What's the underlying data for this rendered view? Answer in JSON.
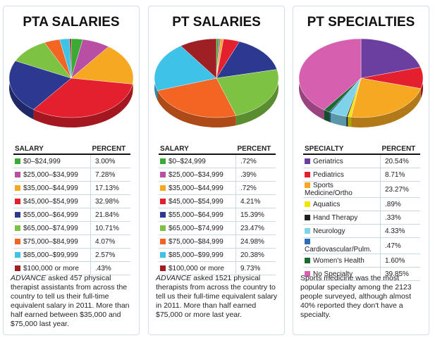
{
  "chart_data": [
    {
      "type": "pie",
      "title": "PTA SALARIES",
      "column_headers": [
        "SALARY",
        "PERCENT"
      ],
      "categories": [
        "$0–$24,999",
        "$25,000–$34,999",
        "$35,000–$44,999",
        "$45,000–$54,999",
        "$55,000–$64,999",
        "$65,000–$74,999",
        "$75,000–$84,999",
        "$85,000–$99,999",
        "$100,000 or more"
      ],
      "values": [
        3.0,
        7.28,
        17.13,
        32.98,
        21.84,
        10.71,
        4.07,
        2.57,
        0.43
      ],
      "value_labels": [
        "3.00%",
        "7.28%",
        "17.13%",
        "32.98%",
        "21.84%",
        "10.71%",
        "4.07%",
        "2.57%",
        ".43%"
      ],
      "colors": [
        "#3aaa35",
        "#b84fa5",
        "#f7a823",
        "#e4202e",
        "#2b3990",
        "#7dc242",
        "#f26522",
        "#3fc2e8",
        "#9e1f24"
      ],
      "caption_lead": "ADVANCE",
      "caption": " asked 457 physical therapist assistants from across the country to tell us their full-time equivalent salary in 2011. More than half earned between $35,000 and $75,000 last year."
    },
    {
      "type": "pie",
      "title": "PT SALARIES",
      "column_headers": [
        "SALARY",
        "PERCENT"
      ],
      "categories": [
        "$0–$24,999",
        "$25,000–$34,999",
        "$35,000–$44,999",
        "$45,000–$54,999",
        "$55,000–$64,999",
        "$65,000–$74,999",
        "$75,000–$84,999",
        "$85,000–$99,999",
        "$100,000 or more"
      ],
      "values": [
        0.72,
        0.39,
        0.72,
        4.21,
        15.39,
        23.47,
        24.98,
        20.38,
        9.73
      ],
      "value_labels": [
        ".72%",
        ".39%",
        ".72%",
        "4.21%",
        "15.39%",
        "23.47%",
        "24.98%",
        "20.38%",
        "9.73%"
      ],
      "colors": [
        "#3aaa35",
        "#b84fa5",
        "#f7a823",
        "#e4202e",
        "#2b3990",
        "#7dc242",
        "#f26522",
        "#3fc2e8",
        "#9e1f24"
      ],
      "caption_lead": "ADVANCE",
      "caption": " asked 1521 physical therapists from across the country to tell us their full-time equivalent salary in 2011. More than half earned $75,000 or more last year."
    },
    {
      "type": "pie",
      "title": "PT SPECIALTIES",
      "column_headers": [
        "SPECIALTY",
        "PERCENT"
      ],
      "categories": [
        "Geriatrics",
        "Pediatrics",
        "Sports Medicine/Ortho",
        "Aquatics",
        "Hand Therapy",
        "Neurology",
        "Cardiovascular/Pulm.",
        "Women's Health",
        "No Specialty"
      ],
      "values": [
        20.54,
        8.71,
        23.27,
        0.89,
        0.33,
        4.33,
        0.47,
        1.6,
        39.85
      ],
      "value_labels": [
        "20.54%",
        "8.71%",
        "23.27%",
        ".89%",
        ".33%",
        "4.33%",
        ".47%",
        "1.60%",
        "39.85%"
      ],
      "colors": [
        "#6b3fa0",
        "#e4202e",
        "#f7a823",
        "#f2e600",
        "#231f20",
        "#7fd3e8",
        "#2e6db4",
        "#1b6b32",
        "#d65fb0"
      ],
      "caption": "Sports medicine was the most popular specialty among the 2123 people surveyed, although almost 40% reported they don't have a specialty."
    }
  ]
}
